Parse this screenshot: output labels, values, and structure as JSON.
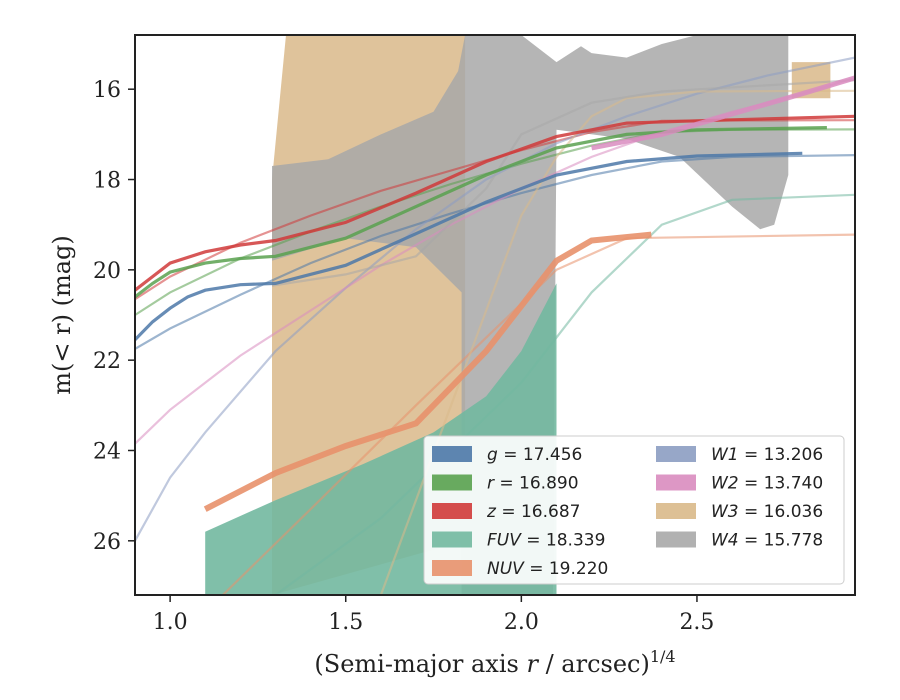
{
  "chart_data": {
    "type": "line",
    "xlabel_main": "(Semi-major axis ",
    "xlabel_var": "r",
    "xlabel_rest": " / arcsec)",
    "xlabel_sup": "1/4",
    "ylabel_main": "m(< r) (mag)",
    "xlim": [
      0.9,
      2.95
    ],
    "ylim": [
      27.2,
      14.8
    ],
    "xticks": [
      1.0,
      1.5,
      2.0,
      2.5
    ],
    "xtick_labels": [
      "1.0",
      "1.5",
      "2.0",
      "2.5"
    ],
    "yticks": [
      16,
      18,
      20,
      22,
      24,
      26
    ],
    "ytick_labels": [
      "16",
      "18",
      "20",
      "22",
      "24",
      "26"
    ],
    "legend_position": "lower-right",
    "legend": [
      {
        "band": "g",
        "value": "17.456",
        "color": "#4c78a8"
      },
      {
        "band": "r",
        "value": "16.890",
        "color": "#59a14f"
      },
      {
        "band": "z",
        "value": "16.687",
        "color": "#d03a3a"
      },
      {
        "band": "FUV",
        "value": "18.339",
        "color": "#72b8a0"
      },
      {
        "band": "NUV",
        "value": "19.220",
        "color": "#e8916b"
      },
      {
        "band": "W1",
        "value": "13.206",
        "color": "#8c9dc2"
      },
      {
        "band": "W2",
        "value": "13.740",
        "color": "#d98cbf"
      },
      {
        "band": "W3",
        "value": "16.036",
        "color": "#d9b98a"
      },
      {
        "band": "W4",
        "value": "15.778",
        "color": "#a8a8a8"
      }
    ],
    "series": [
      {
        "band": "g",
        "color": "#4c78a8",
        "data": [
          [
            0.9,
            21.55
          ],
          [
            0.95,
            21.15
          ],
          [
            1.0,
            20.85
          ],
          [
            1.05,
            20.6
          ],
          [
            1.1,
            20.45
          ],
          [
            1.2,
            20.33
          ],
          [
            1.3,
            20.3
          ],
          [
            1.5,
            19.9
          ],
          [
            1.7,
            19.2
          ],
          [
            1.9,
            18.5
          ],
          [
            2.1,
            17.9
          ],
          [
            2.3,
            17.6
          ],
          [
            2.5,
            17.48
          ],
          [
            2.8,
            17.42
          ]
        ],
        "model": [
          [
            0.9,
            21.75
          ],
          [
            1.0,
            21.3
          ],
          [
            1.2,
            20.55
          ],
          [
            1.4,
            19.85
          ],
          [
            1.6,
            19.25
          ],
          [
            1.8,
            18.75
          ],
          [
            2.0,
            18.3
          ],
          [
            2.2,
            17.9
          ],
          [
            2.4,
            17.6
          ],
          [
            2.6,
            17.5
          ],
          [
            2.95,
            17.46
          ]
        ]
      },
      {
        "band": "r",
        "color": "#59a14f",
        "data": [
          [
            0.9,
            20.6
          ],
          [
            0.95,
            20.3
          ],
          [
            1.0,
            20.05
          ],
          [
            1.1,
            19.85
          ],
          [
            1.2,
            19.75
          ],
          [
            1.3,
            19.7
          ],
          [
            1.5,
            19.3
          ],
          [
            1.7,
            18.6
          ],
          [
            1.9,
            17.9
          ],
          [
            2.1,
            17.3
          ],
          [
            2.3,
            17.0
          ],
          [
            2.5,
            16.9
          ],
          [
            2.87,
            16.85
          ]
        ],
        "model": [
          [
            0.9,
            21.0
          ],
          [
            1.0,
            20.5
          ],
          [
            1.2,
            19.75
          ],
          [
            1.4,
            19.15
          ],
          [
            1.6,
            18.6
          ],
          [
            1.8,
            18.1
          ],
          [
            2.0,
            17.65
          ],
          [
            2.2,
            17.25
          ],
          [
            2.4,
            16.95
          ],
          [
            2.6,
            16.9
          ],
          [
            2.95,
            16.89
          ]
        ]
      },
      {
        "band": "z",
        "color": "#d03a3a",
        "data": [
          [
            0.9,
            20.45
          ],
          [
            0.95,
            20.15
          ],
          [
            1.0,
            19.85
          ],
          [
            1.1,
            19.6
          ],
          [
            1.2,
            19.45
          ],
          [
            1.3,
            19.35
          ],
          [
            1.5,
            18.95
          ],
          [
            1.7,
            18.3
          ],
          [
            1.9,
            17.6
          ],
          [
            2.1,
            17.05
          ],
          [
            2.3,
            16.75
          ],
          [
            2.5,
            16.7
          ],
          [
            2.95,
            16.6
          ]
        ],
        "model": [
          [
            0.9,
            20.65
          ],
          [
            1.0,
            20.15
          ],
          [
            1.2,
            19.4
          ],
          [
            1.4,
            18.8
          ],
          [
            1.6,
            18.25
          ],
          [
            1.8,
            17.8
          ],
          [
            2.0,
            17.35
          ],
          [
            2.2,
            16.95
          ],
          [
            2.4,
            16.7
          ],
          [
            2.6,
            16.69
          ],
          [
            2.95,
            16.687
          ]
        ]
      },
      {
        "band": "FUV",
        "color": "#72b8a0",
        "data": [
          [
            1.1,
            25.8
          ],
          [
            1.3,
            25.2
          ],
          [
            1.6,
            24.5
          ],
          [
            1.85,
            23.2
          ],
          [
            2.0,
            21.8
          ],
          [
            2.1,
            20.3
          ]
        ],
        "model": [
          [
            1.3,
            27.2
          ],
          [
            1.6,
            25.5
          ],
          [
            1.8,
            24.0
          ],
          [
            2.0,
            22.5
          ],
          [
            2.2,
            20.5
          ],
          [
            2.4,
            19.0
          ],
          [
            2.6,
            18.45
          ],
          [
            2.95,
            18.339
          ]
        ]
      },
      {
        "band": "NUV",
        "color": "#e8916b",
        "data": [
          [
            1.1,
            25.3
          ],
          [
            1.3,
            24.5
          ],
          [
            1.5,
            23.9
          ],
          [
            1.7,
            23.4
          ],
          [
            1.9,
            21.8
          ],
          [
            2.1,
            19.8
          ],
          [
            2.2,
            19.35
          ],
          [
            2.37,
            19.22
          ]
        ],
        "model": [
          [
            1.15,
            27.2
          ],
          [
            1.4,
            25.3
          ],
          [
            1.7,
            23.0
          ],
          [
            1.9,
            21.5
          ],
          [
            2.1,
            20.0
          ],
          [
            2.3,
            19.3
          ],
          [
            2.95,
            19.22
          ]
        ]
      },
      {
        "band": "W1",
        "color": "#8c9dc2",
        "model": [
          [
            0.9,
            26.0
          ],
          [
            1.0,
            24.6
          ],
          [
            1.1,
            23.6
          ],
          [
            1.3,
            21.8
          ],
          [
            1.5,
            20.4
          ],
          [
            1.7,
            19.1
          ],
          [
            1.9,
            18.0
          ],
          [
            2.1,
            17.2
          ],
          [
            2.3,
            16.6
          ],
          [
            2.5,
            16.1
          ],
          [
            2.7,
            15.7
          ],
          [
            2.95,
            15.3
          ]
        ]
      },
      {
        "band": "W2",
        "color": "#d98cbf",
        "model": [
          [
            0.9,
            23.85
          ],
          [
            1.0,
            23.1
          ],
          [
            1.2,
            21.9
          ],
          [
            1.4,
            20.9
          ],
          [
            1.6,
            19.9
          ],
          [
            1.8,
            19.0
          ],
          [
            2.0,
            18.2
          ],
          [
            2.2,
            17.5
          ],
          [
            2.4,
            16.95
          ],
          [
            2.6,
            16.5
          ],
          [
            2.8,
            16.1
          ],
          [
            2.95,
            15.75
          ]
        ],
        "data": [
          [
            2.2,
            17.3
          ],
          [
            2.4,
            17.0
          ],
          [
            2.6,
            16.55
          ],
          [
            2.8,
            16.1
          ],
          [
            2.95,
            15.75
          ]
        ]
      },
      {
        "band": "W3",
        "color": "#d9b98a",
        "model": [
          [
            1.6,
            27.2
          ],
          [
            1.8,
            23.0
          ],
          [
            2.0,
            18.8
          ],
          [
            2.1,
            17.5
          ],
          [
            2.2,
            16.6
          ],
          [
            2.3,
            16.2
          ],
          [
            2.5,
            16.05
          ],
          [
            2.95,
            16.036
          ]
        ],
        "band_upper": [
          [
            1.29,
            27.2
          ],
          [
            1.29,
            18.0
          ],
          [
            1.33,
            14.8
          ],
          [
            1.84,
            14.8
          ],
          [
            1.84,
            26.0
          ]
        ],
        "band_lower": [],
        "right_patch": [
          [
            2.77,
            15.4
          ],
          [
            2.88,
            15.4
          ],
          [
            2.88,
            16.2
          ],
          [
            2.77,
            16.2
          ]
        ]
      },
      {
        "band": "W4",
        "color": "#a8a8a8",
        "model": [
          [
            1.29,
            20.35
          ],
          [
            1.5,
            20.1
          ],
          [
            1.7,
            19.7
          ],
          [
            1.9,
            18.2
          ],
          [
            2.0,
            17.0
          ],
          [
            2.2,
            16.3
          ],
          [
            2.4,
            16.05
          ],
          [
            2.95,
            15.8
          ]
        ],
        "envelope": [
          [
            1.29,
            17.7
          ],
          [
            1.45,
            17.55
          ],
          [
            1.6,
            17.0
          ],
          [
            1.75,
            16.5
          ],
          [
            1.82,
            15.6
          ],
          [
            1.84,
            14.8
          ],
          [
            1.95,
            14.8
          ],
          [
            2.0,
            14.8
          ],
          [
            2.1,
            15.4
          ],
          [
            2.17,
            15.05
          ],
          [
            2.2,
            15.2
          ],
          [
            2.3,
            15.3
          ],
          [
            2.4,
            15.0
          ],
          [
            2.5,
            14.8
          ],
          [
            2.76,
            14.8
          ],
          [
            2.76,
            17.9
          ],
          [
            2.72,
            19.0
          ],
          [
            2.68,
            19.1
          ],
          [
            2.6,
            18.6
          ],
          [
            2.45,
            17.5
          ],
          [
            2.3,
            17.1
          ],
          [
            2.1,
            16.9
          ],
          [
            2.09,
            27.2
          ],
          [
            1.83,
            27.2
          ],
          [
            1.83,
            20.5
          ],
          [
            1.7,
            19.5
          ],
          [
            1.5,
            19.3
          ],
          [
            1.29,
            19.8
          ]
        ]
      }
    ]
  }
}
